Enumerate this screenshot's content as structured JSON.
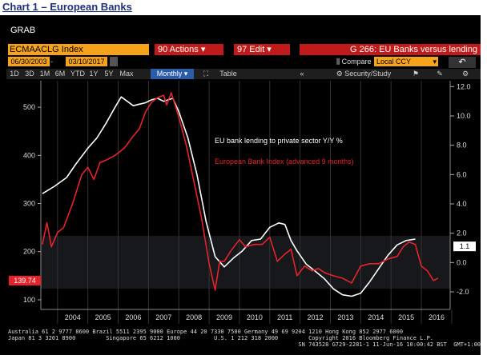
{
  "caption": "Chart 1 – European Banks",
  "grab": "GRAB",
  "ticker": "ECMAACLG Index",
  "actions_label": "90 Actions ▾",
  "edit_label": "97 Edit ▾",
  "title_label": "G 266: EU Banks versus lending",
  "start_date": "06/30/2003",
  "end_date": "03/10/2017",
  "date_dash": "-",
  "compare_label": "Compare",
  "compare_value": "Local CCY",
  "period_buttons": [
    "1D",
    "3D",
    "1M",
    "6M",
    "YTD",
    "1Y",
    "5Y",
    "Max"
  ],
  "frequency": "Monthly ▾",
  "table_label": "Table",
  "security_label": "Security/Study",
  "footer": {
    "line1": "Australia 61 2 9777 8600 Brazil 5511 2395 9000 Europe 44 20 7330 7500 Germany 49 69 9204 1210 Hong Kong 852 2977 6000",
    "line2": "Japan 81 3 3201 8900         Singapore 65 6212 1000          U.S. 1 212 318 2000         Copyright 2016 Bloomberg Finance L.P.",
    "line3": "SN 743528 G729-2281-1 11-Jun-16 10:00:42 BST  GMT+1:00"
  },
  "colors": {
    "bank": "#e8222a",
    "lending": "#ffffff",
    "orange": "#f7a21b",
    "red_btn": "#c11a1a"
  },
  "chart_data": {
    "type": "line",
    "x_ticks": [
      "2004",
      "2005",
      "2006",
      "2007",
      "2008",
      "2009",
      "2010",
      "2011",
      "2012",
      "2013",
      "2014",
      "2015",
      "2016"
    ],
    "left_axis": {
      "ticks": [
        100,
        200,
        300,
        400,
        500
      ],
      "ylim": [
        80,
        555
      ]
    },
    "right_axis": {
      "ticks": [
        "-2.0",
        "0.0",
        "2.0",
        "4.0",
        "6.0",
        "8.0",
        "10.0",
        "12.0"
      ],
      "ylim": [
        -3.2,
        12.4
      ]
    },
    "current_left": "139.74",
    "current_right": "1.1",
    "series": [
      {
        "name": "EU bank lending to private sector Y/Y %",
        "axis": "right",
        "color": "#ffffff",
        "x": [
          2003.5,
          2003.9,
          2004.3,
          2004.6,
          2005.0,
          2005.3,
          2005.6,
          2005.9,
          2006.1,
          2006.3,
          2006.5,
          2006.7,
          2006.9,
          2007.1,
          2007.3,
          2007.5,
          2007.8,
          2008.0,
          2008.3,
          2008.6,
          2008.9,
          2009.2,
          2009.5,
          2009.8,
          2010.1,
          2010.4,
          2010.7,
          2011.0,
          2011.3,
          2011.5,
          2011.7,
          2011.9,
          2012.2,
          2012.5,
          2012.8,
          2013.1,
          2013.4,
          2013.7,
          2014.0,
          2014.3,
          2014.6,
          2014.9,
          2015.2,
          2015.5,
          2015.8
        ],
        "y": [
          4.7,
          5.2,
          5.8,
          6.7,
          7.8,
          8.5,
          9.5,
          10.6,
          11.3,
          11.0,
          10.7,
          10.8,
          10.9,
          11.1,
          11.2,
          11.0,
          11.2,
          10.3,
          8.5,
          6.0,
          2.8,
          0.4,
          -0.3,
          0.3,
          0.8,
          1.5,
          1.6,
          2.4,
          2.7,
          2.6,
          1.5,
          0.8,
          -0.1,
          -0.6,
          -1.1,
          -1.8,
          -2.2,
          -2.3,
          -2.1,
          -1.3,
          -0.4,
          0.5,
          1.2,
          1.5,
          1.6
        ]
      },
      {
        "name": "European Bank Index (advanced 9 months)",
        "axis": "left",
        "color": "#e8222a",
        "x": [
          2003.5,
          2003.65,
          2003.8,
          2004.0,
          2004.2,
          2004.5,
          2004.8,
          2005.0,
          2005.2,
          2005.4,
          2005.6,
          2005.9,
          2006.2,
          2006.5,
          2006.7,
          2006.9,
          2007.1,
          2007.3,
          2007.5,
          2007.6,
          2007.75,
          2008.0,
          2008.25,
          2008.5,
          2008.75,
          2009.0,
          2009.2,
          2009.35,
          2009.5,
          2009.7,
          2010.0,
          2010.2,
          2010.5,
          2010.75,
          2011.0,
          2011.25,
          2011.5,
          2011.7,
          2011.9,
          2012.15,
          2012.4,
          2012.6,
          2012.85,
          2013.1,
          2013.4,
          2013.7,
          2014.0,
          2014.3,
          2014.6,
          2014.9,
          2015.2,
          2015.4,
          2015.6,
          2015.8,
          2016.0,
          2016.2,
          2016.4,
          2016.55
        ],
        "y": [
          215,
          260,
          210,
          240,
          250,
          300,
          360,
          375,
          350,
          385,
          390,
          400,
          415,
          440,
          455,
          490,
          510,
          520,
          525,
          505,
          530,
          480,
          420,
          345,
          270,
          175,
          120,
          180,
          180,
          200,
          225,
          210,
          215,
          215,
          230,
          180,
          195,
          205,
          150,
          170,
          160,
          165,
          155,
          150,
          145,
          135,
          170,
          175,
          175,
          185,
          190,
          210,
          220,
          215,
          170,
          160,
          140,
          145
        ]
      }
    ],
    "legend": "top-center"
  }
}
